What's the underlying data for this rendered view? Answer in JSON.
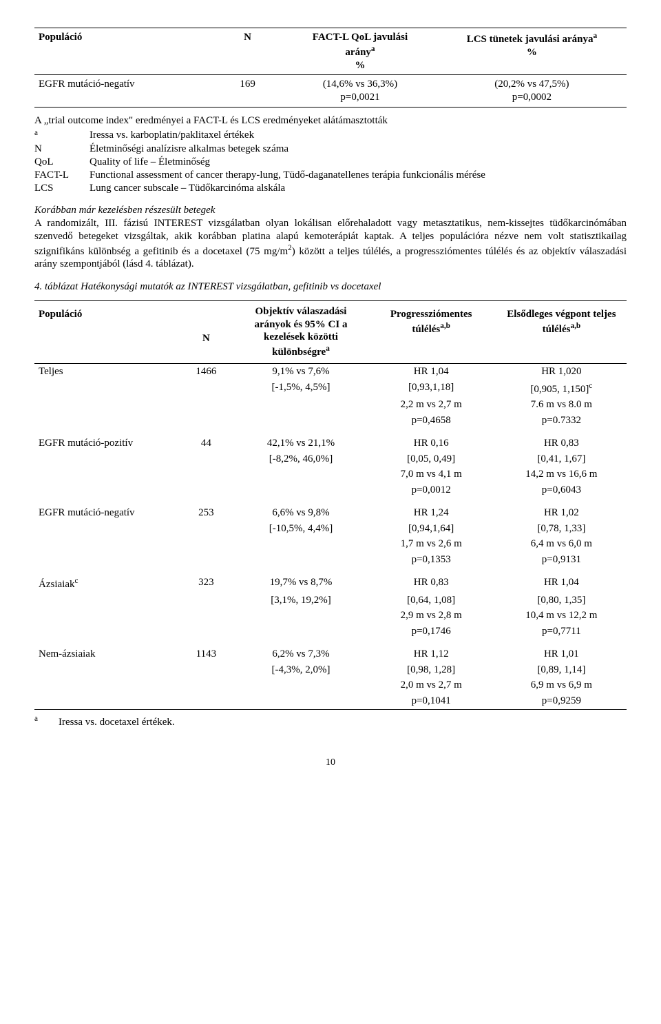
{
  "table1": {
    "headers": {
      "pop": "Populáció",
      "n": "N",
      "c1a": "FACT-L QoL javulási",
      "c1b": "arány",
      "c1sup": "a",
      "c1pct": "%",
      "c2a": "LCS tünetek javulási aránya",
      "c2sup": "a",
      "c2pct": "%"
    },
    "row": {
      "pop": "EGFR mutáció-negatív",
      "n": "169",
      "v1a": "(14,6% vs 36,3%)",
      "v1b": "p=0,0021",
      "v2a": "(20,2% vs 47,5%)",
      "v2b": "p=0,0002"
    }
  },
  "notes": {
    "l0": "A „trial outcome index\" eredményei a FACT-L és LCS eredményeket alátámasztották",
    "a": {
      "k": "a",
      "v": "Iressa vs. karboplatin/paklitaxel értékek"
    },
    "N": {
      "k": "N",
      "v": "Életminőségi analízisre alkalmas betegek száma"
    },
    "QoL": {
      "k": "QoL",
      "v": "Quality of life – Életminőség"
    },
    "FACTL": {
      "k": "FACT-L",
      "v": "Functional assessment of cancer therapy-lung, Tüdő-daganatellenes terápia funkcionális mérése"
    },
    "LCS": {
      "k": "LCS",
      "v": "Lung cancer subscale – Tüdőkarcinóma alskála"
    }
  },
  "section": {
    "heading": "Korábban már kezelésben részesült betegek",
    "p1": "A randomizált, III. fázisú INTEREST vizsgálatban olyan lokálisan előrehaladott vagy metasztatikus, nem-kissejtes tüdőkarcinómában szenvedő betegeket vizsgáltak, akik korábban platina alapú kemoterápiát kaptak. A teljes populációra nézve nem volt statisztikailag szignifikáns különbség a gefitinib és a docetaxel (75 mg/m",
    "p1sup": "2",
    "p1b": ") között a teljes túlélés, a progressziómentes túlélés és az objektív válaszadási arány szempontjából (lásd 4. táblázat).",
    "caption": "4. táblázat Hatékonysági mutatók az INTEREST vizsgálatban, gefitinib vs docetaxel"
  },
  "table2": {
    "headers": {
      "pop": "Populáció",
      "n": "N",
      "c1a": "Objektív válaszadási arányok és 95% CI a kezelések közötti különbségre",
      "c1sup": "a",
      "c2a": "Progressziómentes túlélés",
      "c2sup": "a,b",
      "c3a": "Elsődleges végpont teljes túlélés",
      "c3sup": "a,b"
    },
    "rows": [
      {
        "pop": "Teljes",
        "n": "1466",
        "a1": "9,1% vs 7,6%",
        "a2": "[-1,5%, 4,5%]",
        "b1": "HR 1,04",
        "b2": "[0,93,1,18]",
        "b3": "2,2 m vs 2,7 m",
        "b4": "p=0,4658",
        "c1": "HR 1,020",
        "c2a": "[0,905, 1,150]",
        "c2sup": "c",
        "c3": "7.6 m vs 8.0 m",
        "c4": "p=0.7332"
      },
      {
        "pop": "EGFR mutáció-pozitív",
        "n": "44",
        "a1": "42,1% vs 21,1%",
        "a2": "[-8,2%, 46,0%]",
        "b1": "HR 0,16",
        "b2": "[0,05, 0,49]",
        "b3": "7,0 m vs 4,1 m",
        "b4": "p=0,0012",
        "c1": "HR 0,83",
        "c2a": "[0,41, 1,67]",
        "c2sup": "",
        "c3": "14,2 m vs 16,6 m",
        "c4": "p=0,6043"
      },
      {
        "pop": "EGFR mutáció-negatív",
        "n": "253",
        "a1": "6,6% vs 9,8%",
        "a2": "[-10,5%, 4,4%]",
        "b1": "HR 1,24",
        "b2": "[0,94,1,64]",
        "b3": "1,7 m vs 2,6 m",
        "b4": "p=0,1353",
        "c1": "HR 1,02",
        "c2a": "[0,78, 1,33]",
        "c2sup": "",
        "c3": "6,4 m vs 6,0 m",
        "c4": "p=0,9131"
      },
      {
        "pop": "Ázsiaiak",
        "popsup": "c",
        "n": "323",
        "a1": "19,7% vs 8,7%",
        "a2": "[3,1%, 19,2%]",
        "b1": "HR 0,83",
        "b2": "[0,64, 1,08]",
        "b3": "2,9 m vs 2,8 m",
        "b4": "p=0,1746",
        "c1": "HR 1,04",
        "c2a": "[0,80, 1,35]",
        "c2sup": "",
        "c3": "10,4 m vs 12,2 m",
        "c4": "p=0,7711"
      },
      {
        "pop": "Nem-ázsiaiak",
        "n": "1143",
        "a1": "6,2% vs 7,3%",
        "a2": "[-4,3%, 2,0%]",
        "b1": "HR 1,12",
        "b2": "[0,98, 1,28]",
        "b3": "2,0 m vs 2,7 m",
        "b4": "p=0,1041",
        "c1": "HR 1,01",
        "c2a": "[0,89, 1,14]",
        "c2sup": "",
        "c3": "6,9 m vs 6,9 m",
        "c4": "p=0,9259"
      }
    ],
    "footnote": {
      "k": "a",
      "v": "Iressa vs. docetaxel értékek."
    }
  },
  "pageno": "10"
}
